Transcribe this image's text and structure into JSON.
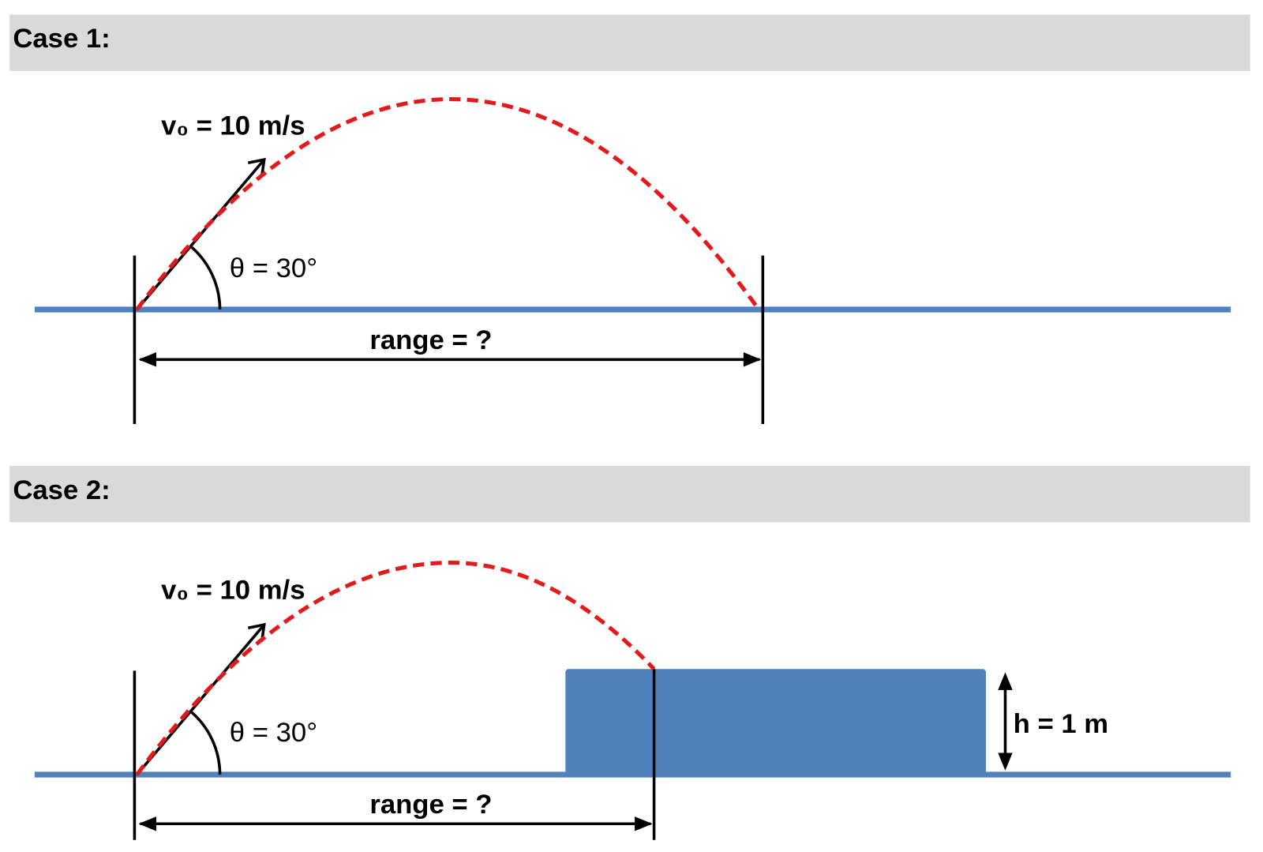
{
  "cases": [
    {
      "header": "Case 1:",
      "velocity_label": "v₀ = 10 m/s",
      "angle_label": "θ = 30°",
      "range_label": "range = ?"
    },
    {
      "header": "Case 2:",
      "velocity_label": "v₀ = 10 m/s",
      "angle_label": "θ = 30°",
      "range_label": "range = ?",
      "height_label": "h = 1 m"
    }
  ]
}
